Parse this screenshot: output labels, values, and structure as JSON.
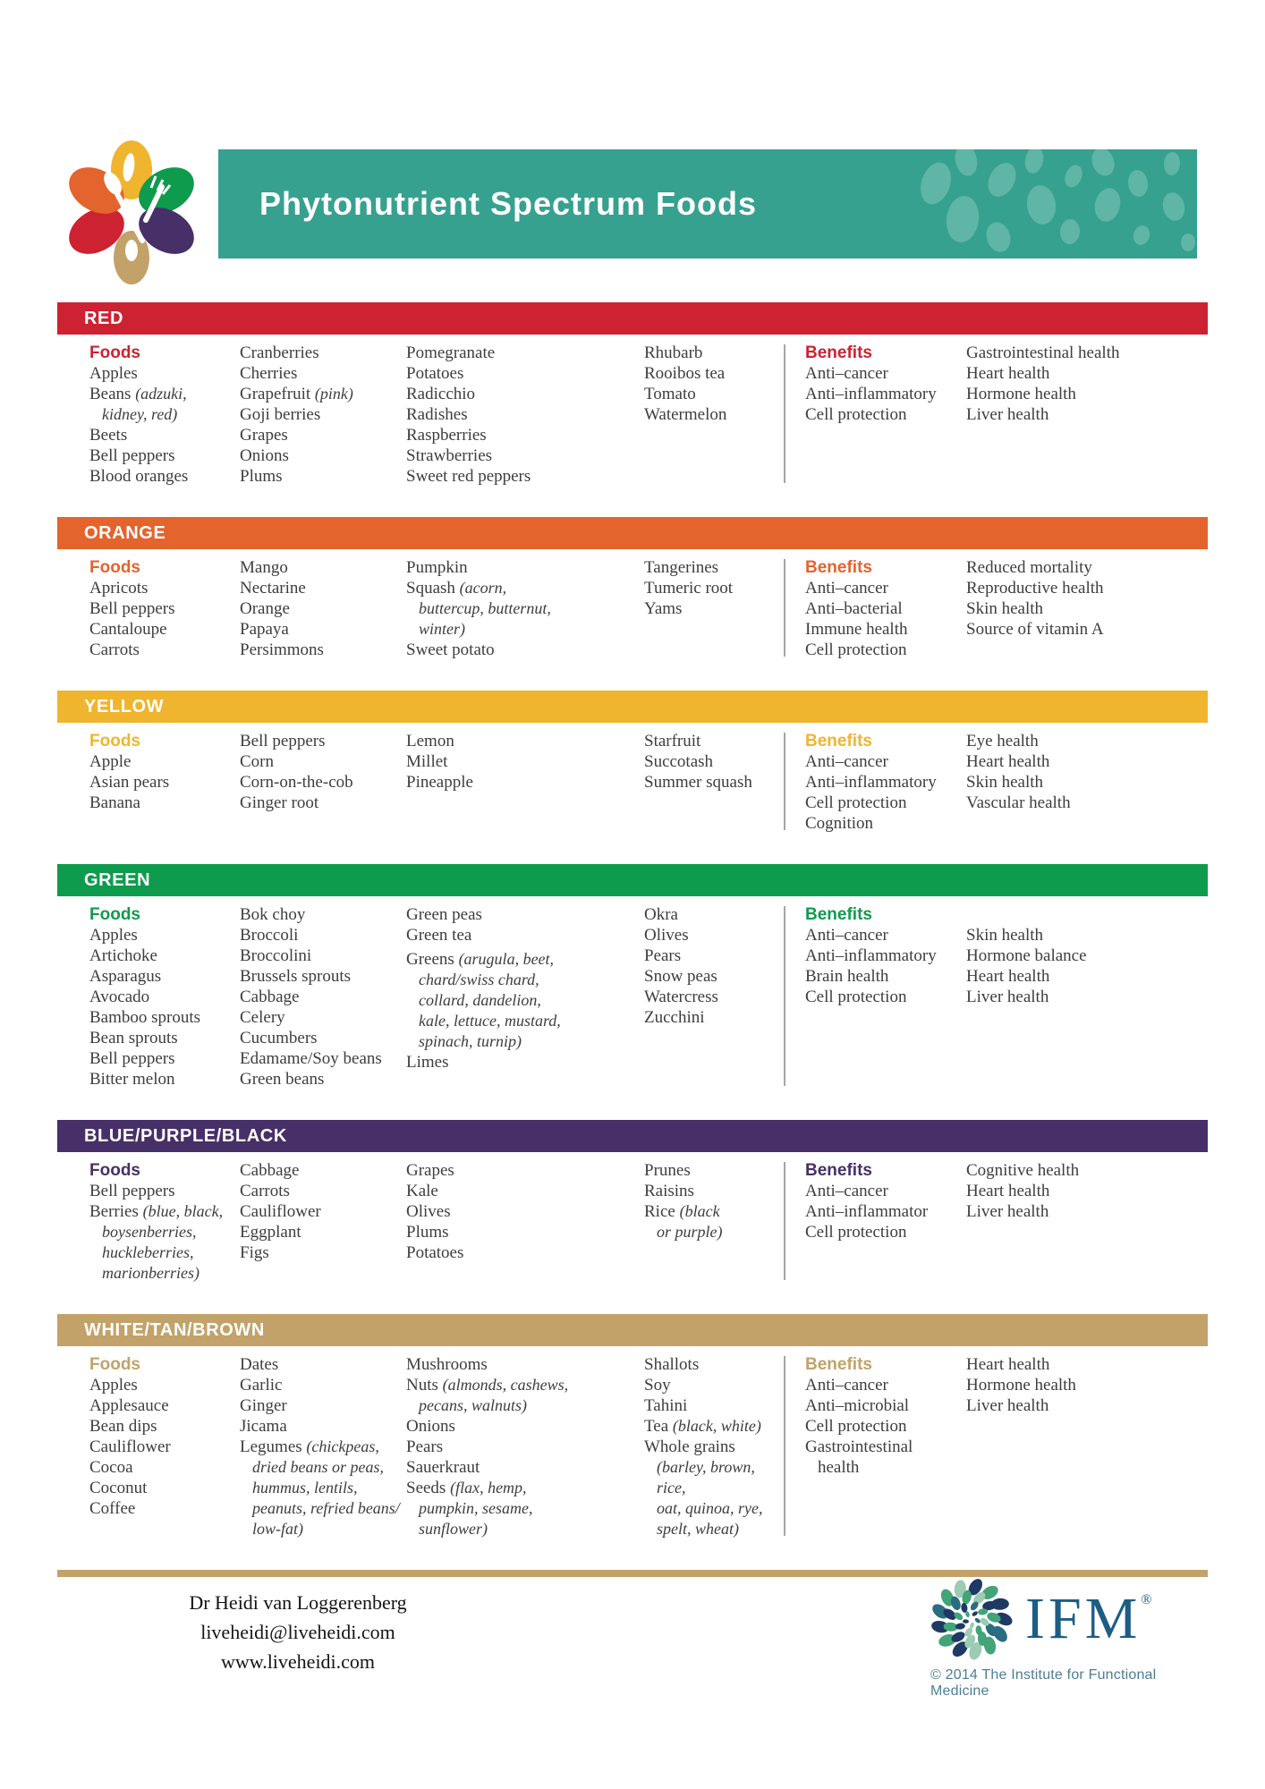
{
  "header": {
    "title": "Phytonutrient Spectrum Foods",
    "banner_color": "#36a18f",
    "banner_pattern_color": "#5fb5a6",
    "logo_icon": "phytonutrient-flower-logo"
  },
  "sections": [
    {
      "label": "RED",
      "color": "#cd2232",
      "foods_label": "Foods",
      "benefits_label": "Benefits",
      "foods": [
        [
          "Apples",
          {
            "t": "Beans ",
            "i": "(adzuki,\nkidney, red)"
          },
          "Beets",
          "Bell peppers",
          "Blood oranges"
        ],
        [
          "Cranberries",
          "Cherries",
          {
            "t": "Grapefruit ",
            "i": "(pink)"
          },
          "Goji berries",
          "Grapes",
          "Onions",
          "Plums"
        ],
        [
          "Pomegranate",
          "Potatoes",
          "Radicchio",
          "Radishes",
          "Raspberries",
          "Strawberries",
          "Sweet red peppers"
        ],
        [
          "Rhubarb",
          "Rooibos tea",
          "Tomato",
          "Watermelon"
        ]
      ],
      "benefits": [
        [
          "Anti–cancer",
          "Anti–inflammatory",
          "Cell protection"
        ],
        [
          "Gastrointestinal health",
          "Heart health",
          "Hormone health",
          "Liver health"
        ]
      ]
    },
    {
      "label": "ORANGE",
      "color": "#e3642c",
      "foods_label": "Foods",
      "benefits_label": "Benefits",
      "foods": [
        [
          "Apricots",
          "Bell peppers",
          "Cantaloupe",
          "Carrots"
        ],
        [
          "Mango",
          "Nectarine",
          "Orange",
          "Papaya",
          "Persimmons"
        ],
        [
          "Pumpkin",
          {
            "t": "Squash ",
            "i": "(acorn,\nbuttercup, butternut,\nwinter)"
          },
          "Sweet potato"
        ],
        [
          "Tangerines",
          "Tumeric root",
          "Yams"
        ]
      ],
      "benefits": [
        [
          "Anti–cancer",
          "Anti–bacterial",
          "Immune health",
          "Cell protection"
        ],
        [
          "Reduced mortality",
          "Reproductive health",
          "Skin health",
          "Source of vitamin A"
        ]
      ]
    },
    {
      "label": "YELLOW",
      "color": "#f0b52e",
      "foods_label": "Foods",
      "benefits_label": "Benefits",
      "foods": [
        [
          "Apple",
          "Asian pears",
          "Banana"
        ],
        [
          "Bell peppers",
          "Corn",
          "Corn-on-the-cob",
          "Ginger root"
        ],
        [
          "Lemon",
          "Millet",
          "Pineapple"
        ],
        [
          "Starfruit",
          "Succotash",
          "Summer squash"
        ]
      ],
      "benefits": [
        [
          "Anti–cancer",
          "Anti–inflammatory",
          "Cell protection",
          "Cognition"
        ],
        [
          "Eye health",
          "Heart health",
          "Skin health",
          "Vascular health"
        ]
      ]
    },
    {
      "label": "GREEN",
      "color": "#0f9b4d",
      "foods_label": "Foods",
      "benefits_label": "Benefits",
      "foods": [
        [
          "Apples",
          "Artichoke",
          "Asparagus",
          "Avocado",
          "Bamboo sprouts",
          "Bean sprouts",
          "Bell peppers",
          "Bitter melon"
        ],
        [
          "Bok choy",
          "Broccoli",
          "Broccolini",
          "Brussels sprouts",
          "Cabbage",
          "Celery",
          "Cucumbers",
          "Edamame/Soy beans",
          "Green beans"
        ],
        [
          "Green peas",
          "Green tea",
          {
            "t": "Greens ",
            "i": "(arugula, beet,\nchard/swiss chard,\ncollard, dandelion,\nkale, lettuce, mustard,\nspinach, turnip)",
            "gap": true
          },
          "Limes"
        ],
        [
          "Okra",
          "Olives",
          "Pears",
          "Snow peas",
          "Watercress",
          "Zucchini"
        ]
      ],
      "benefits": [
        [
          "Anti–cancer",
          "Anti–inflammatory",
          "Brain health",
          "Cell protection"
        ],
        [
          "",
          "Skin health",
          "Hormone balance",
          "Heart health",
          "Liver health"
        ]
      ]
    },
    {
      "label": "BLUE/PURPLE/BLACK",
      "color": "#473068",
      "foods_label": "Foods",
      "benefits_label": "Benefits",
      "foods": [
        [
          "Bell peppers",
          {
            "t": "Berries ",
            "i": "(blue, black,\nboysenberries,\nhuckleberries,\nmarionberries)"
          }
        ],
        [
          "Cabbage",
          "Carrots",
          "Cauliflower",
          "Eggplant",
          "Figs"
        ],
        [
          "Grapes",
          "Kale",
          "Olives",
          "Plums",
          "Potatoes"
        ],
        [
          "Prunes",
          "Raisins",
          {
            "t": "Rice ",
            "i": "(black\nor purple)"
          }
        ]
      ],
      "benefits": [
        [
          "Anti–cancer",
          "Anti–inflammator",
          "Cell protection"
        ],
        [
          "Cognitive health",
          "Heart health",
          "Liver health"
        ]
      ]
    },
    {
      "label": "WHITE/TAN/BROWN",
      "color": "#c2a269",
      "foods_label": "Foods",
      "benefits_label": "Benefits",
      "foods": [
        [
          "Apples",
          "Applesauce",
          "Bean dips",
          "Cauliflower",
          "Cocoa",
          "Coconut",
          "Coffee"
        ],
        [
          "Dates",
          "Garlic",
          "Ginger",
          "Jicama",
          {
            "t": "Legumes ",
            "i": "(chickpeas,\ndried beans or peas,\nhummus, lentils,\npeanuts, refried beans/\nlow-fat)"
          }
        ],
        [
          "Mushrooms",
          {
            "t": "Nuts ",
            "i": "(almonds, cashews,\npecans, walnuts)"
          },
          "Onions",
          "Pears",
          "Sauerkraut",
          {
            "t": "Seeds ",
            "i": "(flax, hemp,\npumpkin, sesame,\nsunflower)"
          }
        ],
        [
          "Shallots",
          "Soy",
          "Tahini",
          {
            "t": "Tea ",
            "i": "(black, white)"
          },
          {
            "t": "Whole grains",
            "i": "\n(barley, brown, rice,\noat, quinoa, rye,\nspelt, wheat)"
          }
        ]
      ],
      "benefits": [
        [
          "Anti–cancer",
          "Anti–microbial",
          "Cell protection",
          "Gastrointestinal\nhealth"
        ],
        [
          "Heart health",
          "Hormone health",
          "Liver health"
        ]
      ]
    }
  ],
  "footer": {
    "contact_name": "Dr Heidi van Loggerenberg",
    "contact_email": "liveheidi@liveheidi.com",
    "contact_website": "www.liveheidi.com",
    "ifm_wordmark": "IFM",
    "ifm_registered_mark": "®",
    "ifm_logo_icon": "ifm-swirl-icon",
    "copyright": "© 2014 The Institute for Functional Medicine"
  }
}
